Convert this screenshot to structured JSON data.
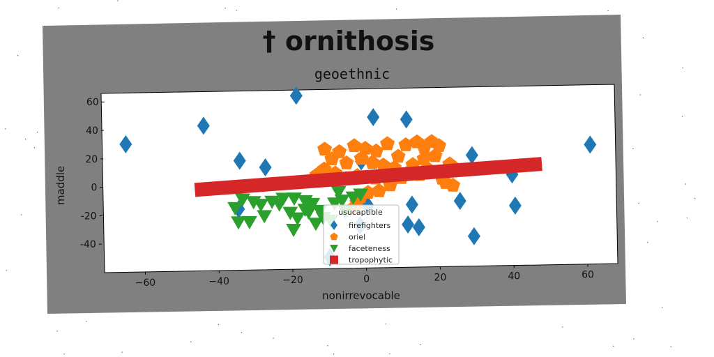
{
  "figure": {
    "suptitle": "† ornithosis",
    "background": "#808080",
    "plot_background": "#ffffff"
  },
  "chart_data": {
    "type": "scatter",
    "title": "geoethnic",
    "xlabel": "nonirrevocable",
    "ylabel": "maddle",
    "xlim": [
      -72,
      67
    ],
    "ylim": [
      -60,
      66
    ],
    "xticks": [
      -60,
      -40,
      -20,
      0,
      20,
      40,
      60
    ],
    "yticks": [
      -40,
      -20,
      0,
      20,
      40,
      60
    ],
    "grid": false,
    "legend": {
      "title": "usucaptible",
      "placement": "lower-center",
      "entries": [
        "firefighters",
        "oriel",
        "faceteness",
        "tropophytic"
      ]
    },
    "series": [
      {
        "name": "firefighters",
        "marker": "diamond",
        "color": "#1f77b4",
        "points": [
          [
            -66,
            30
          ],
          [
            -45,
            42
          ],
          [
            -35,
            17
          ],
          [
            -28,
            12
          ],
          [
            -35,
            -17
          ],
          [
            -20,
            62
          ],
          [
            1,
            46
          ],
          [
            10,
            44
          ],
          [
            -2,
            15
          ],
          [
            0,
            -16
          ],
          [
            12,
            -16
          ],
          [
            11,
            -30
          ],
          [
            14,
            -32
          ],
          [
            25,
            -14
          ],
          [
            28,
            18
          ],
          [
            29,
            -39
          ],
          [
            39,
            4
          ],
          [
            40,
            -18
          ],
          [
            60,
            24
          ],
          [
            -10,
            -52
          ],
          [
            -2,
            -30
          ]
        ]
      },
      {
        "name": "oriel",
        "marker": "pentagon",
        "color": "#ff7f0e",
        "points": [
          [
            -12,
            24
          ],
          [
            -8,
            22
          ],
          [
            -10,
            17
          ],
          [
            -6,
            14
          ],
          [
            -12,
            10
          ],
          [
            -4,
            26
          ],
          [
            -1,
            24
          ],
          [
            2,
            22
          ],
          [
            5,
            27
          ],
          [
            -2,
            17
          ],
          [
            1,
            14
          ],
          [
            4,
            12
          ],
          [
            7,
            10
          ],
          [
            10,
            26
          ],
          [
            13,
            28
          ],
          [
            15,
            24
          ],
          [
            17,
            28
          ],
          [
            19,
            25
          ],
          [
            18,
            18
          ],
          [
            15,
            16
          ],
          [
            12,
            12
          ],
          [
            11,
            7
          ],
          [
            14,
            5
          ],
          [
            16,
            9
          ],
          [
            20,
            2
          ],
          [
            22,
            12
          ],
          [
            24,
            8
          ],
          [
            23,
            -3
          ],
          [
            21,
            -1
          ],
          [
            9,
            3
          ],
          [
            6,
            -2
          ],
          [
            2,
            3
          ],
          [
            -3,
            5
          ],
          [
            -6,
            3
          ],
          [
            -9,
            7
          ],
          [
            3,
            -6
          ],
          [
            0,
            -7
          ],
          [
            -2,
            -10
          ],
          [
            -3,
            -14
          ],
          [
            -4,
            -18
          ],
          [
            8,
            18
          ],
          [
            -14,
            6
          ]
        ]
      },
      {
        "name": "faceteness",
        "marker": "triangle_down",
        "color": "#2ca02c",
        "points": [
          [
            -34,
            -10
          ],
          [
            -36,
            -16
          ],
          [
            -35,
            -26
          ],
          [
            -32,
            -26
          ],
          [
            -31,
            -12
          ],
          [
            -29,
            -14
          ],
          [
            -28,
            -22
          ],
          [
            -26,
            -12
          ],
          [
            -24,
            -14
          ],
          [
            -23,
            -10
          ],
          [
            -21,
            -20
          ],
          [
            -20,
            -10
          ],
          [
            -17,
            -12
          ],
          [
            -16,
            -20
          ],
          [
            -15,
            -14
          ],
          [
            -19,
            -24
          ],
          [
            -20,
            -32
          ],
          [
            -17,
            -18
          ],
          [
            -14,
            -28
          ],
          [
            -13,
            -19
          ],
          [
            -12,
            -24
          ],
          [
            -10,
            -26
          ],
          [
            -9,
            -14
          ],
          [
            -7,
            -12
          ],
          [
            -6,
            -20
          ],
          [
            -8,
            -6
          ],
          [
            -4,
            -10
          ],
          [
            -2,
            -8
          ]
        ]
      }
    ],
    "lines": [
      {
        "name": "tropophytic",
        "color": "#d62728",
        "x": [
          -47,
          47
        ],
        "y": [
          -3,
          11
        ]
      }
    ]
  }
}
